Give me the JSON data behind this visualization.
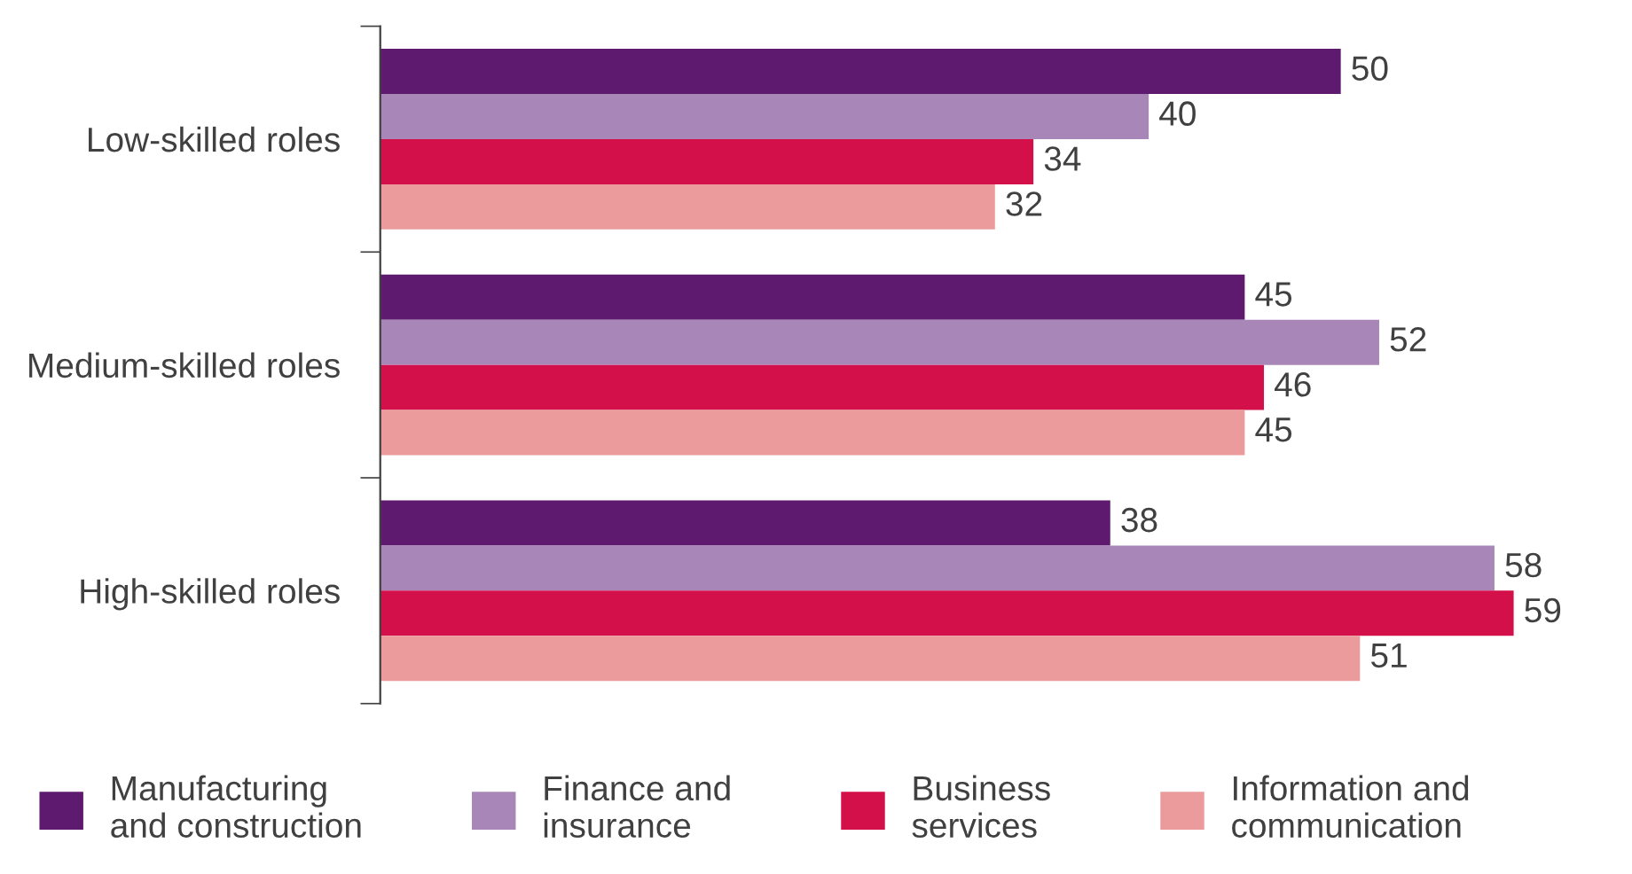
{
  "chart_data": {
    "type": "bar",
    "orientation": "horizontal",
    "categories": [
      "Low-skilled roles",
      "Medium-skilled roles",
      "High-skilled roles"
    ],
    "series": [
      {
        "name": "Manufacturing\nand construction",
        "color": "#5e1a6e",
        "values": [
          50,
          45,
          38
        ]
      },
      {
        "name": "Finance and\ninsurance",
        "color": "#a886b8",
        "values": [
          40,
          52,
          58
        ]
      },
      {
        "name": "Business\nservices",
        "color": "#d4104a",
        "values": [
          34,
          46,
          59
        ]
      },
      {
        "name": "Information and\ncommunication",
        "color": "#eb9b9b",
        "values": [
          32,
          45,
          51
        ]
      }
    ],
    "data_labels": true,
    "legend": "bottom",
    "tick_labels": "y"
  }
}
